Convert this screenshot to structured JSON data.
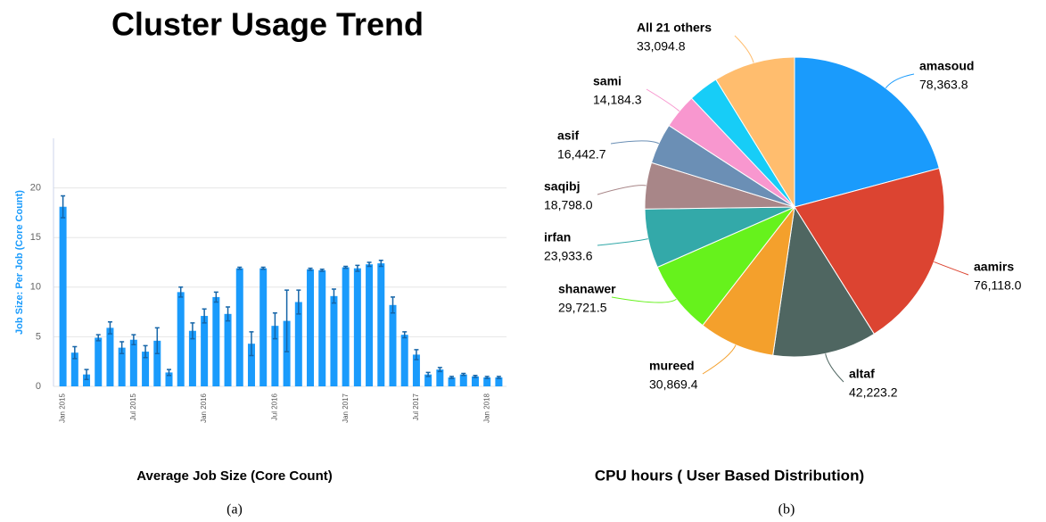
{
  "title": "Cluster Usage Trend",
  "captions": [
    "(a)",
    "(b)"
  ],
  "chart_data": [
    {
      "type": "bar",
      "title": "Average Job Size (Core Count)",
      "y_label": "Job Size: Per Job (Core Count)",
      "categories": [
        "Jan 2015",
        null,
        null,
        null,
        null,
        null,
        "Jul 2015",
        null,
        null,
        null,
        null,
        null,
        "Jan 2016",
        null,
        null,
        null,
        null,
        null,
        "Jul 2016",
        null,
        null,
        null,
        null,
        null,
        "Jan 2017",
        null,
        null,
        null,
        null,
        null,
        "Jul 2017",
        null,
        null,
        null,
        null,
        null,
        "Jan 2018",
        null
      ],
      "values": [
        18.1,
        3.4,
        1.2,
        4.9,
        5.9,
        3.9,
        4.7,
        3.5,
        4.6,
        1.4,
        9.5,
        5.6,
        7.1,
        9.0,
        7.3,
        11.9,
        4.3,
        11.9,
        6.1,
        6.6,
        8.5,
        11.8,
        11.7,
        9.1,
        12.0,
        11.9,
        12.3,
        12.4,
        8.2,
        5.2,
        3.2,
        1.2,
        1.7,
        0.9,
        1.2,
        1.0,
        0.9,
        0.9
      ],
      "errors": [
        1.1,
        0.6,
        0.5,
        0.3,
        0.6,
        0.6,
        0.5,
        0.6,
        1.3,
        0.3,
        0.5,
        0.8,
        0.7,
        0.5,
        0.7,
        0.1,
        1.2,
        0.1,
        1.3,
        3.1,
        1.2,
        0.1,
        0.1,
        0.7,
        0.1,
        0.3,
        0.2,
        0.3,
        0.8,
        0.3,
        0.5,
        0.2,
        0.2,
        0.1,
        0.1,
        0.1,
        0.1,
        0.1
      ],
      "color": "#1a9bfc",
      "ylim": [
        0,
        25
      ],
      "yticks": [
        0,
        5,
        10,
        15,
        20
      ],
      "grid": true
    },
    {
      "type": "pie",
      "title": "CPU hours ( User Based Distribution)",
      "categories": [
        "amasoud",
        "aamirs",
        "altaf",
        "mureed",
        "shanawer",
        "irfan",
        "saqibj",
        "asif",
        "sami",
        null,
        "All 21 others"
      ],
      "values": [
        78363.8,
        76118.0,
        42223.2,
        30869.4,
        29721.5,
        23933.6,
        18798.0,
        16442.7,
        14184.3,
        12300,
        33094.8
      ],
      "value_labels": [
        "78,363.8",
        "76,118.0",
        "42,223.2",
        "30,869.4",
        "29,721.5",
        "23,933.6",
        "18,798.0",
        "16,442.7",
        "14,184.3",
        null,
        "33,094.8"
      ],
      "colors": [
        "#1a9bfc",
        "#dc4431",
        "#4f6661",
        "#f4a02c",
        "#66f21c",
        "#33a9a9",
        "#a88688",
        "#6b8fb5",
        "#f897cf",
        "#17cdf7",
        "#ffbd6e"
      ]
    }
  ]
}
